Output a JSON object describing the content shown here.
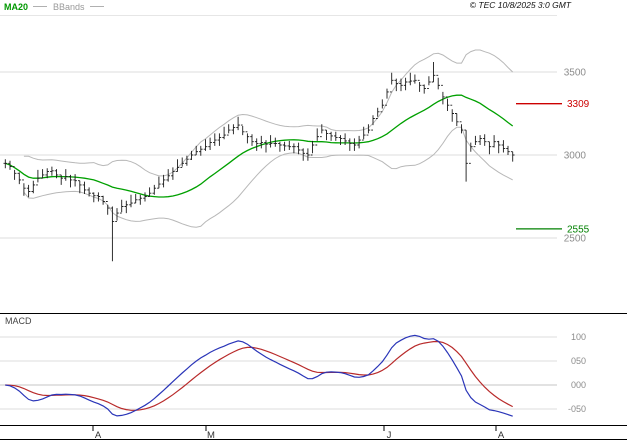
{
  "header": {
    "ma_label": "MA20",
    "bbands_label": "BBands",
    "copyright": "© TEC 10/8/2025 3:0 GMT"
  },
  "macd_panel": {
    "label": "MACD"
  },
  "chart_data": {
    "type": "candlestick",
    "title": "",
    "price_panel": {
      "y_ticks": [
        3500,
        3000,
        2500
      ],
      "levels": [
        {
          "value": 3309,
          "label": "3309",
          "color": "#cc0000"
        },
        {
          "value": 2555,
          "label": "2555",
          "color": "#008000"
        }
      ],
      "overlays": {
        "ma_period": 20,
        "bollinger_period": 20,
        "bollinger_k": 2
      },
      "series": {
        "high": [
          2975,
          2965,
          2910,
          2895,
          2830,
          2820,
          2845,
          2910,
          2915,
          2920,
          2930,
          2915,
          2880,
          2915,
          2880,
          2885,
          2845,
          2840,
          2805,
          2775,
          2775,
          2755,
          2700,
          2690,
          2680,
          2730,
          2725,
          2760,
          2765,
          2760,
          2775,
          2805,
          2820,
          2870,
          2880,
          2915,
          2925,
          2975,
          2985,
          2995,
          3025,
          3055,
          3055,
          3095,
          3105,
          3130,
          3130,
          3170,
          3185,
          3185,
          3230,
          3175,
          3130,
          3125,
          3100,
          3115,
          3090,
          3120,
          3105,
          3080,
          3080,
          3085,
          3070,
          3075,
          3040,
          3040,
          3085,
          3160,
          3185,
          3150,
          3140,
          3140,
          3120,
          3130,
          3100,
          3100,
          3115,
          3170,
          3185,
          3240,
          3285,
          3335,
          3400,
          3495,
          3460,
          3460,
          3465,
          3495,
          3485,
          3440,
          3425,
          3475,
          3560,
          3465,
          3380,
          3340,
          3275,
          3250,
          3185,
          3150,
          3075,
          3115,
          3120,
          3125,
          3080,
          3120,
          3085,
          3090,
          3055,
          3020
        ],
        "low": [
          2920,
          2910,
          2850,
          2825,
          2755,
          2745,
          2770,
          2835,
          2860,
          2860,
          2875,
          2860,
          2820,
          2845,
          2805,
          2810,
          2770,
          2765,
          2750,
          2715,
          2720,
          2700,
          2640,
          2360,
          2605,
          2655,
          2650,
          2685,
          2710,
          2700,
          2720,
          2750,
          2760,
          2800,
          2805,
          2840,
          2850,
          2900,
          2930,
          2935,
          2970,
          3000,
          2995,
          3025,
          3030,
          3055,
          3055,
          3095,
          3130,
          3125,
          3150,
          3120,
          3070,
          3055,
          3025,
          3040,
          3015,
          3045,
          3050,
          3020,
          3025,
          3030,
          3010,
          3005,
          2965,
          2965,
          3010,
          3085,
          3130,
          3090,
          3085,
          3085,
          3060,
          3060,
          3025,
          3025,
          3040,
          3095,
          3130,
          3180,
          3230,
          3280,
          3340,
          3425,
          3385,
          3385,
          3390,
          3420,
          3430,
          3380,
          3370,
          3420,
          3440,
          3395,
          3305,
          3265,
          3200,
          3175,
          3130,
          2840,
          3020,
          3060,
          3060,
          3055,
          3005,
          3045,
          3010,
          3015,
          3000,
          2960
        ],
        "close": [
          2950,
          2930,
          2890,
          2850,
          2800,
          2780,
          2820,
          2860,
          2880,
          2900,
          2905,
          2880,
          2860,
          2870,
          2850,
          2845,
          2820,
          2790,
          2770,
          2755,
          2750,
          2720,
          2680,
          2600,
          2650,
          2690,
          2700,
          2710,
          2730,
          2740,
          2750,
          2770,
          2800,
          2825,
          2850,
          2875,
          2900,
          2925,
          2950,
          2975,
          3000,
          3020,
          3035,
          3050,
          3075,
          3090,
          3105,
          3120,
          3150,
          3165,
          3180,
          3140,
          3110,
          3080,
          3070,
          3075,
          3065,
          3070,
          3070,
          3060,
          3055,
          3050,
          3050,
          3030,
          3010,
          3000,
          3060,
          3110,
          3150,
          3130,
          3115,
          3105,
          3100,
          3085,
          3070,
          3060,
          3090,
          3120,
          3150,
          3220,
          3260,
          3300,
          3380,
          3450,
          3430,
          3420,
          3440,
          3445,
          3450,
          3420,
          3400,
          3440,
          3480,
          3420,
          3350,
          3300,
          3250,
          3200,
          3150,
          2950,
          3050,
          3080,
          3100,
          3080,
          3050,
          3080,
          3060,
          3040,
          3020,
          3000
        ]
      }
    },
    "macd_panel_data": {
      "params": [
        12,
        26,
        9
      ],
      "y_ticks": [
        {
          "v": 100,
          "label": "100"
        },
        {
          "v": 50,
          "label": "050"
        },
        {
          "v": 0,
          "label": "000"
        },
        {
          "v": -50,
          "label": "-050"
        }
      ]
    },
    "x_axis": {
      "labels": [
        "A",
        "M",
        "J",
        "A"
      ],
      "positions": [
        93,
        206,
        384,
        496
      ]
    },
    "colors": {
      "ma20": "#00a000",
      "bands": "#b8b8b8",
      "bars": "#1a1a1a",
      "macd_line": "#2a35b8",
      "macd_signal": "#b82a2a",
      "grid": "#dcdcdc",
      "grid_zero": "#c4c4c4",
      "axis_text": "#8c8c8c",
      "legend_ma": "#009900",
      "legend_bb": "#999999",
      "month_text": "#333333"
    }
  }
}
